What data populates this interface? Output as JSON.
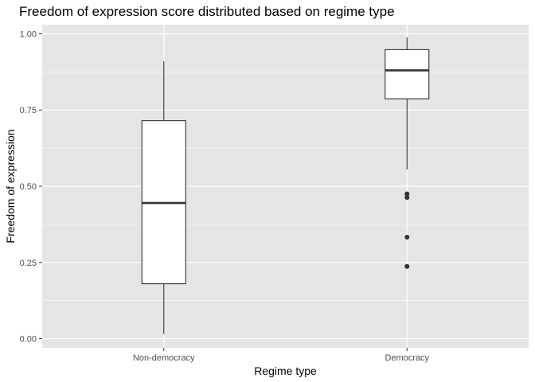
{
  "chart_data": {
    "type": "boxplot",
    "title": "Freedom of expression score distributed based on regime type",
    "xlabel": "Regime type",
    "ylabel": "Freedom of expression",
    "ylim": [
      -0.03,
      1.03
    ],
    "yticks": [
      0.0,
      0.25,
      0.5,
      0.75,
      1.0
    ],
    "ytick_labels": [
      "0.00",
      "0.25",
      "0.50",
      "0.75",
      "1.00"
    ],
    "categories": [
      "Non-democracy",
      "Democracy"
    ],
    "boxes": [
      {
        "category": "Non-democracy",
        "whisker_low": 0.015,
        "q1": 0.18,
        "median": 0.445,
        "q3": 0.715,
        "whisker_high": 0.91,
        "outliers": []
      },
      {
        "category": "Democracy",
        "whisker_low": 0.555,
        "q1": 0.787,
        "median": 0.88,
        "q3": 0.948,
        "whisker_high": 0.988,
        "outliers": [
          0.475,
          0.463,
          0.333,
          0.237
        ]
      }
    ],
    "grid": true,
    "legend": "none",
    "colors": {
      "panel": "#e5e5e5",
      "grid": "#ffffff",
      "box_fill": "#ffffff",
      "box_line": "#333333"
    }
  }
}
